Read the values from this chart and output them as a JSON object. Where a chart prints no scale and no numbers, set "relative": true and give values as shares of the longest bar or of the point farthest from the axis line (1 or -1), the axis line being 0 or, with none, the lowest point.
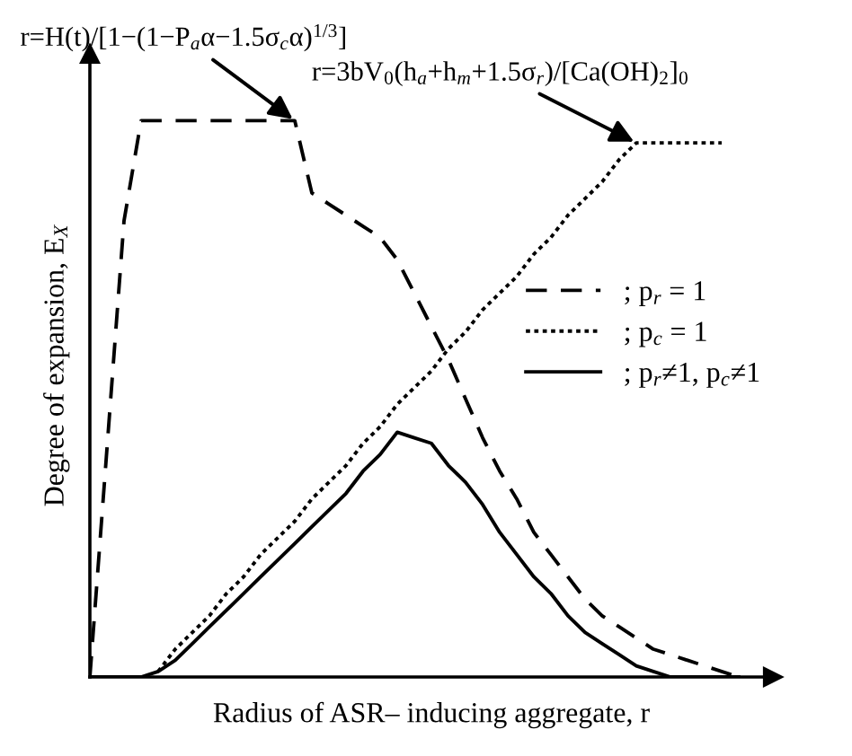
{
  "chart_data": {
    "type": "line",
    "relative": true,
    "xlabel": "Radius of ASR– inducing aggregate, r",
    "ylabel": "Degree of expansion, E$_{X}$",
    "legend": "right",
    "marker": "none",
    "categories": [
      null,
      null,
      null,
      null,
      null,
      null,
      null,
      null,
      null,
      null,
      null,
      null,
      null,
      null,
      null,
      null,
      null,
      null,
      null,
      null,
      null,
      null,
      null,
      null,
      null,
      null,
      null,
      null,
      null,
      null,
      null,
      null,
      null,
      null,
      null,
      null,
      null,
      null,
      null
    ],
    "series": [
      {
        "name": "; p$_{r}$ = 1",
        "color": "#000000",
        "line_style": "dashed",
        "values": [
          0,
          0.41,
          0.82,
          1,
          1,
          1,
          1,
          1,
          1,
          1,
          1,
          1,
          1,
          0.87,
          0.85,
          0.83,
          0.81,
          0.79,
          0.75,
          0.69,
          0.63,
          0.57,
          0.5,
          0.43,
          0.37,
          0.32,
          0.26,
          0.22,
          0.18,
          0.14,
          0.11,
          0.09,
          0.07,
          0.05,
          0.04,
          0.03,
          0.02,
          0.01,
          0
        ]
      },
      {
        "name": "; p$_{c}$ = 1",
        "color": "#000000",
        "line_style": "dotted",
        "values": [
          null,
          null,
          null,
          null,
          0.01,
          0.05,
          0.08,
          0.11,
          0.15,
          0.18,
          0.22,
          0.25,
          0.28,
          0.32,
          0.35,
          0.38,
          0.42,
          0.45,
          0.49,
          0.52,
          0.55,
          0.59,
          0.62,
          0.66,
          0.69,
          0.72,
          0.76,
          0.79,
          0.83,
          0.86,
          0.89,
          0.93,
          0.96,
          0.96,
          0.96,
          0.96,
          0.96,
          0.96,
          null
        ]
      },
      {
        "name": "; p$_{r}$≠1, p$_{c}$≠1",
        "color": "#000000",
        "line_style": "solid",
        "values": [
          0,
          0,
          0,
          0,
          0.01,
          0.03,
          0.06,
          0.09,
          0.12,
          0.15,
          0.18,
          0.21,
          0.24,
          0.27,
          0.3,
          0.33,
          0.37,
          0.4,
          0.44,
          0.43,
          0.42,
          0.38,
          0.35,
          0.31,
          0.26,
          0.22,
          0.18,
          0.15,
          0.11,
          0.08,
          0.06,
          0.04,
          0.02,
          0.01,
          0,
          0,
          0,
          0,
          0
        ]
      }
    ],
    "annotations": [
      "r=H(t)/[1−(1−P$_{a}$α−1.5σ$_{c}$α)$^{1/3}$]",
      "r=3bV$_{0}$(h$_{a}$+h$_{m}$+1.5σ$_{r}$)/[Ca(OH)$_{2}$]$_{0}$"
    ]
  }
}
